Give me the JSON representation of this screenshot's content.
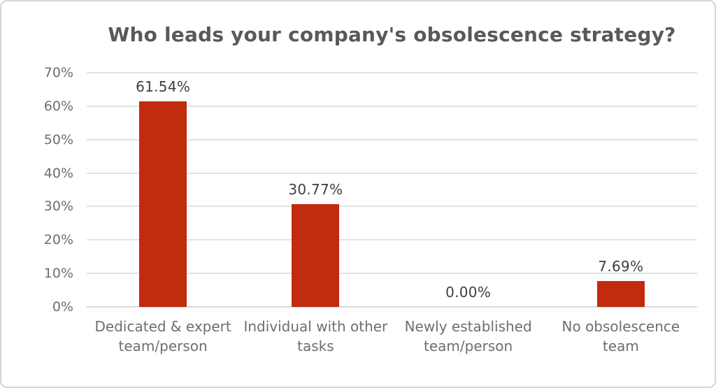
{
  "chart_data": {
    "type": "bar",
    "title": "Who leads your company's obsolescence strategy?",
    "categories": [
      "Dedicated & expert team/person",
      "Individual with other tasks",
      "Newly established team/person",
      "No obsolescence team"
    ],
    "values": [
      61.54,
      30.77,
      0,
      7.69
    ],
    "value_labels": [
      "61.54%",
      "30.77%",
      "0.00%",
      "7.69%"
    ],
    "xlabel": "",
    "ylabel": "",
    "ylim": [
      0,
      70
    ],
    "yticks": [
      70,
      60,
      50,
      40,
      30,
      20,
      10,
      0
    ],
    "ytick_labels": [
      "70%",
      "60%",
      "50%",
      "40%",
      "30%",
      "20%",
      "10%",
      "0%"
    ],
    "grid": true,
    "legend": false,
    "colors": {
      "bar": "#c12b0e",
      "title_text": "#595959",
      "value_label_text": "#3f3f3f",
      "axis_text": "#6e6e6e",
      "gridline": "#e3e3e3",
      "baseline": "#d9d9d9",
      "figure_border": "#d6d6d6",
      "background": "#ffffff"
    }
  }
}
